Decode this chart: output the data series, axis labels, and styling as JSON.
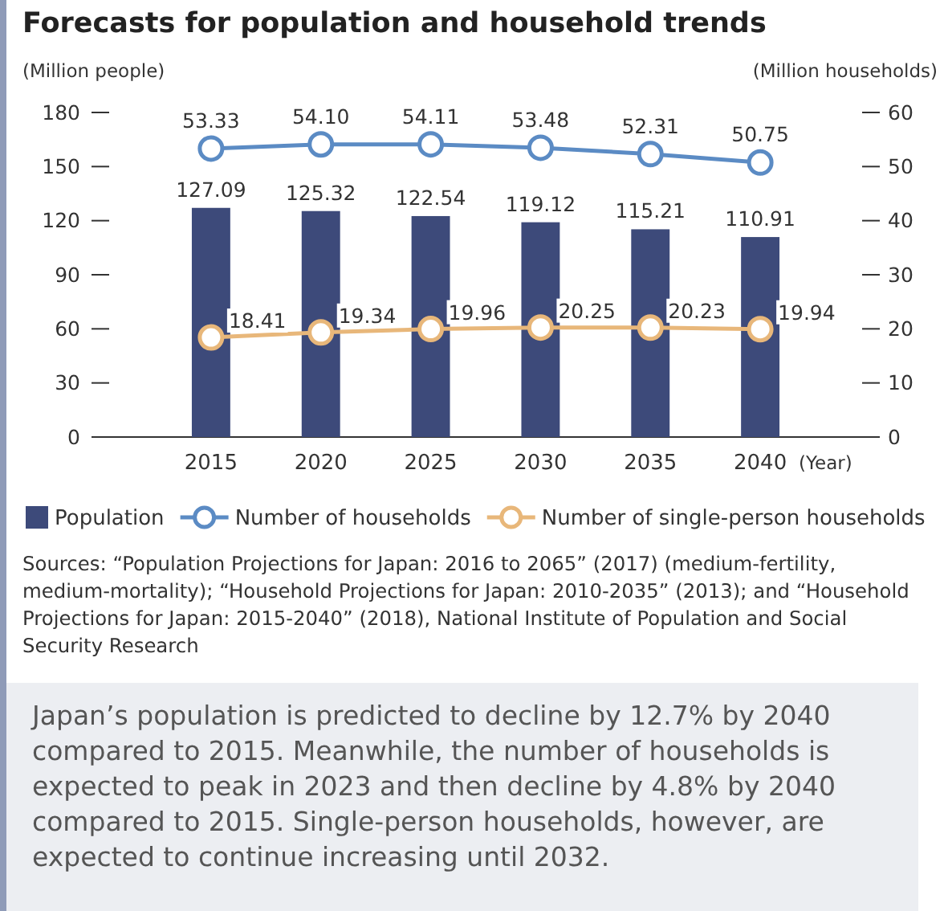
{
  "chart_data": {
    "type": "bar",
    "title": "Forecasts for population and household trends",
    "ylabel": "(Million people)",
    "y2label": "(Million households)",
    "xlabel": "(Year)",
    "categories": [
      "2015",
      "2020",
      "2025",
      "2030",
      "2035",
      "2040"
    ],
    "series": [
      {
        "name": "Population",
        "color": "#3d4a7a",
        "values": [
          127.09,
          125.32,
          122.54,
          119.12,
          115.21,
          110.91
        ],
        "value_labels": [
          "127.09",
          "125.32",
          "122.54",
          "119.12",
          "115.21",
          "110.91"
        ]
      },
      {
        "name": "Number of households",
        "type": "line",
        "axis": "y2",
        "color": "#5b8bc4",
        "values": [
          53.33,
          54.1,
          54.11,
          53.48,
          52.31,
          50.75
        ],
        "value_labels": [
          "53.33",
          "54.10",
          "54.11",
          "53.48",
          "52.31",
          "50.75"
        ]
      },
      {
        "name": "Number of single-person households",
        "type": "line",
        "axis": "y2",
        "color": "#e8b77a",
        "values": [
          18.41,
          19.34,
          19.96,
          20.25,
          20.23,
          19.94
        ],
        "value_labels": [
          "18.41",
          "19.34",
          "19.96",
          "20.25",
          "20.23",
          "19.94"
        ]
      }
    ],
    "ylim": [
      0,
      180
    ],
    "yticks": [
      0,
      30,
      60,
      90,
      120,
      150,
      180
    ],
    "y2lim": [
      0,
      60
    ],
    "y2ticks": [
      0,
      10,
      20,
      30,
      40,
      50,
      60
    ],
    "marker": "circle",
    "line_style": "solid",
    "legend": "bottom",
    "grid": false,
    "annotations": [
      "Sources: “Population Projections for Japan: 2016 to 2065” (2017) (medium-fertility, medium-mortality); “Household Projections for Japan: 2010-2035” (2013); and “Household Projections for Japan: 2015-2040” (2018), National Institute of Population and Social Security Research",
      "Japan’s population is predicted to decline by 12.7% by 2040 compared to 2015. Meanwhile, the number of households is expected to peak in 2023 and then decline by 4.8% by 2040 compared to 2015. Single-person households, however, are expected to continue increasing until 2032."
    ]
  }
}
